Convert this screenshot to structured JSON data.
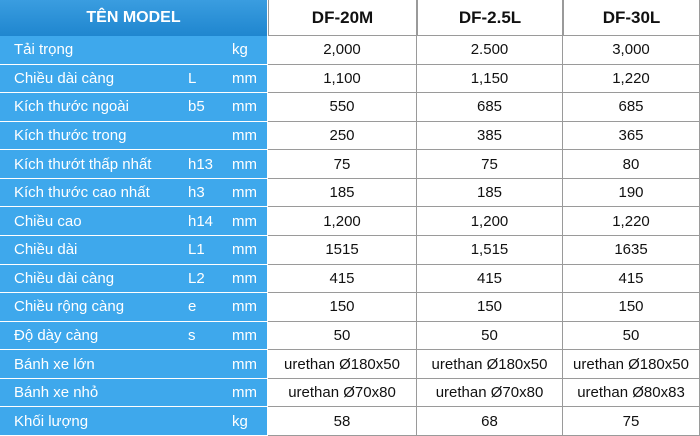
{
  "header": {
    "title": "TÊN MODEL",
    "models": [
      "DF-20M",
      "DF-2.5L",
      "DF-30L"
    ]
  },
  "rows": [
    {
      "name": "Tải trọng",
      "unit": "kg",
      "values": [
        "2,000",
        "2.500",
        "3,000"
      ]
    },
    {
      "name": "Chiều dài càng",
      "symbol": "L",
      "unit": "mm",
      "values": [
        "1,100",
        "1,150",
        "1,220"
      ]
    },
    {
      "name": "Kích thước ngoài",
      "symbol": "b5",
      "unit": "mm",
      "values": [
        "550",
        "685",
        "685"
      ]
    },
    {
      "name": "Kích thước trong",
      "unit": "mm",
      "values": [
        "250",
        "385",
        "365"
      ]
    },
    {
      "name": "Kích thướt thấp nhất",
      "symbol": "h13",
      "unit": "mm",
      "values": [
        "75",
        "75",
        "80"
      ]
    },
    {
      "name": "Kích thước cao nhất",
      "symbol": "h3",
      "unit": "mm",
      "values": [
        "185",
        "185",
        "190"
      ]
    },
    {
      "name": "Chiều cao",
      "symbol": "h14",
      "unit": "mm",
      "values": [
        "1,200",
        "1,200",
        "1,220"
      ]
    },
    {
      "name": "Chiều dài",
      "symbol": "L1",
      "unit": "mm",
      "values": [
        "1515",
        "1,515",
        "1635"
      ]
    },
    {
      "name": "Chiều dài càng",
      "symbol": "L2",
      "unit": "mm",
      "values": [
        "415",
        "415",
        "415"
      ]
    },
    {
      "name": "Chiều rộng càng",
      "symbol": "e",
      "unit": "mm",
      "values": [
        "150",
        "150",
        "150"
      ]
    },
    {
      "name": "Độ dày càng",
      "symbol": "s",
      "unit": "mm",
      "values": [
        "50",
        "50",
        "50"
      ]
    },
    {
      "name": "Bánh xe lớn",
      "unit": "mm",
      "values": [
        "urethan Ø180x50",
        "urethan Ø180x50",
        "urethan Ø180x50"
      ]
    },
    {
      "name": "Bánh xe nhỏ",
      "unit": "mm",
      "values": [
        "urethan Ø70x80",
        "urethan Ø70x80",
        "urethan Ø80x83"
      ]
    },
    {
      "name": "Khối lượng",
      "unit": "kg",
      "values": [
        "58",
        "68",
        "75"
      ]
    }
  ]
}
